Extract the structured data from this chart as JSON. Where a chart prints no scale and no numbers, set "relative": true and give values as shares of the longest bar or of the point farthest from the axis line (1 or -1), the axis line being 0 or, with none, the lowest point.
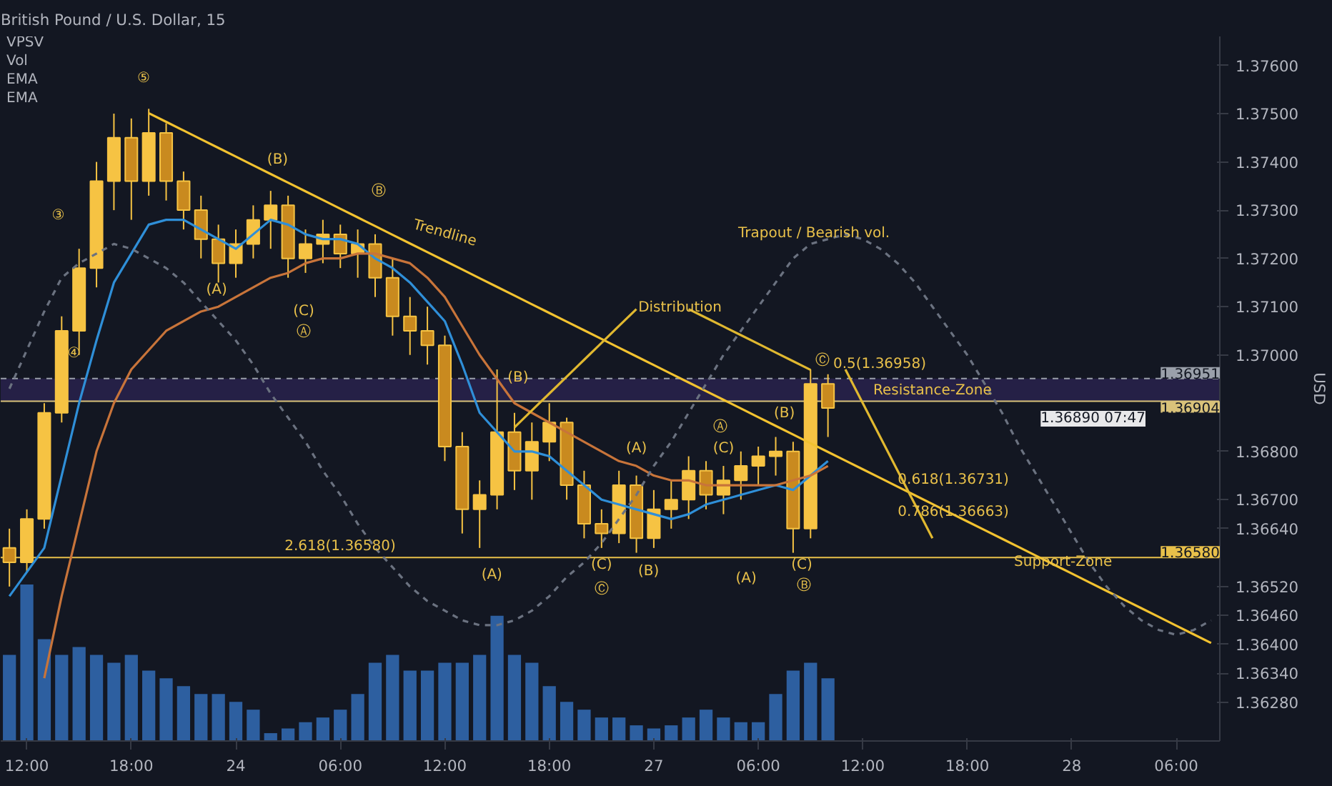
{
  "chart_data": [
    {
      "type": "candlestick",
      "title": "British Pound / U.S. Dollar, 15",
      "ylabel": "USD",
      "categories": [
        null,
        "12:00",
        null,
        null,
        null,
        null,
        null,
        "18:00",
        null,
        null,
        null,
        null,
        null,
        "24",
        null,
        null,
        null,
        null,
        null,
        "06:00",
        null,
        null,
        null,
        null,
        null,
        "12:00",
        null,
        null,
        null,
        null,
        null,
        "18:00",
        null,
        null,
        null,
        null,
        null,
        "27",
        null,
        null,
        null,
        null,
        null,
        "06:00",
        null,
        null,
        null,
        null,
        null,
        "12:00",
        null,
        null,
        null,
        null,
        null,
        "18:00",
        null,
        null,
        null,
        null,
        null,
        "28",
        null,
        null,
        null,
        null,
        null,
        "06:00",
        null,
        null
      ],
      "ylim": [
        1.362,
        1.3766
      ],
      "yticks": [
        {
          "value": 1.376,
          "label": "1.37600"
        },
        {
          "value": 1.375,
          "label": "1.37500"
        },
        {
          "value": 1.374,
          "label": "1.37400"
        },
        {
          "value": 1.373,
          "label": "1.37300"
        },
        {
          "value": 1.372,
          "label": "1.37200"
        },
        {
          "value": 1.371,
          "label": "1.37100"
        },
        {
          "value": 1.37,
          "label": "1.37000"
        },
        {
          "value": 1.368,
          "label": "1.36800"
        },
        {
          "value": 1.367,
          "label": "1.36700"
        },
        {
          "value": 1.3664,
          "label": "1.36640"
        },
        {
          "value": 1.3652,
          "label": "1.36520"
        },
        {
          "value": 1.3646,
          "label": "1.36460"
        },
        {
          "value": 1.364,
          "label": "1.36400"
        },
        {
          "value": 1.3634,
          "label": "1.36340"
        },
        {
          "value": 1.3628,
          "label": "1.36280"
        }
      ],
      "series": [
        {
          "type": "candlestick",
          "color": "#f6c343",
          "ohlc": [
            [
              1.366,
              1.3664,
              1.3652,
              1.3657
            ],
            [
              1.3657,
              1.3668,
              1.3655,
              1.3666
            ],
            [
              1.3666,
              1.369,
              1.3664,
              1.3688
            ],
            [
              1.3688,
              1.3708,
              1.3686,
              1.3705
            ],
            [
              1.3705,
              1.3722,
              1.37,
              1.3718
            ],
            [
              1.3718,
              1.374,
              1.3714,
              1.3736
            ],
            [
              1.3736,
              1.375,
              1.373,
              1.3745
            ],
            [
              1.3745,
              1.3749,
              1.3728,
              1.3736
            ],
            [
              1.3736,
              1.3751,
              1.3733,
              1.3746
            ],
            [
              1.3746,
              1.3748,
              1.3732,
              1.3736
            ],
            [
              1.3736,
              1.3738,
              1.3726,
              1.373
            ],
            [
              1.373,
              1.3733,
              1.372,
              1.3724
            ],
            [
              1.3724,
              1.3727,
              1.3715,
              1.3719
            ],
            [
              1.3719,
              1.3726,
              1.3716,
              1.3723
            ],
            [
              1.3723,
              1.3731,
              1.372,
              1.3728
            ],
            [
              1.3728,
              1.3734,
              1.3722,
              1.3731
            ],
            [
              1.3731,
              1.3733,
              1.3716,
              1.372
            ],
            [
              1.372,
              1.3726,
              1.3717,
              1.3723
            ],
            [
              1.3723,
              1.3728,
              1.3719,
              1.3725
            ],
            [
              1.3725,
              1.3727,
              1.3718,
              1.3721
            ],
            [
              1.3721,
              1.3726,
              1.3716,
              1.3723
            ],
            [
              1.3723,
              1.3725,
              1.3712,
              1.3716
            ],
            [
              1.3716,
              1.372,
              1.3704,
              1.3708
            ],
            [
              1.3708,
              1.3712,
              1.37,
              1.3705
            ],
            [
              1.3705,
              1.371,
              1.3698,
              1.3702
            ],
            [
              1.3702,
              1.3704,
              1.3678,
              1.3681
            ],
            [
              1.3681,
              1.3684,
              1.3663,
              1.3668
            ],
            [
              1.3668,
              1.3674,
              1.366,
              1.3671
            ],
            [
              1.3671,
              1.3697,
              1.3668,
              1.3684
            ],
            [
              1.3684,
              1.3688,
              1.3672,
              1.3676
            ],
            [
              1.3676,
              1.3686,
              1.367,
              1.3682
            ],
            [
              1.3682,
              1.369,
              1.3678,
              1.3686
            ],
            [
              1.3686,
              1.3687,
              1.367,
              1.3673
            ],
            [
              1.3673,
              1.3676,
              1.3662,
              1.3665
            ],
            [
              1.3665,
              1.3668,
              1.366,
              1.3663
            ],
            [
              1.3663,
              1.3676,
              1.3661,
              1.3673
            ],
            [
              1.3673,
              1.3675,
              1.3659,
              1.3662
            ],
            [
              1.3662,
              1.3672,
              1.366,
              1.3668
            ],
            [
              1.3668,
              1.3674,
              1.3664,
              1.367
            ],
            [
              1.367,
              1.3679,
              1.3666,
              1.3676
            ],
            [
              1.3676,
              1.3678,
              1.3668,
              1.3671
            ],
            [
              1.3671,
              1.3677,
              1.3667,
              1.3674
            ],
            [
              1.3674,
              1.368,
              1.367,
              1.3677
            ],
            [
              1.3677,
              1.3681,
              1.3673,
              1.3679
            ],
            [
              1.3679,
              1.3683,
              1.3675,
              1.368
            ],
            [
              1.368,
              1.3682,
              1.3659,
              1.3664
            ],
            [
              1.3664,
              1.3697,
              1.3662,
              1.3694
            ],
            [
              1.3694,
              1.3696,
              1.3683,
              1.3689
            ],
            null,
            null,
            null,
            null,
            null,
            null,
            null,
            null,
            null,
            null,
            null,
            null,
            null,
            null,
            null,
            null,
            null,
            null,
            null,
            null,
            null,
            null
          ]
        },
        {
          "type": "line",
          "color": "#2f8fd8",
          "values": [
            1.365,
            1.3655,
            1.366,
            1.3675,
            1.369,
            1.3703,
            1.3715,
            1.3721,
            1.3727,
            1.3728,
            1.3728,
            1.3726,
            1.3724,
            1.3722,
            1.3725,
            1.3728,
            1.3727,
            1.3725,
            1.3724,
            1.3724,
            1.3723,
            1.372,
            1.3718,
            1.3715,
            1.3711,
            1.3707,
            1.3698,
            1.3688,
            1.3684,
            1.368,
            1.368,
            1.3679,
            1.3676,
            1.3673,
            1.367,
            1.3669,
            1.3668,
            1.3667,
            1.3666,
            1.3667,
            1.3669,
            1.367,
            1.3671,
            1.3672,
            1.3673,
            1.3672,
            1.3675,
            1.3678,
            null,
            null,
            null,
            null,
            null,
            null,
            null,
            null,
            null,
            null,
            null,
            null,
            null,
            null,
            null,
            null,
            null,
            null,
            null,
            null,
            null,
            null
          ]
        },
        {
          "type": "line",
          "color": "#c8743a",
          "values": [
            null,
            null,
            1.3633,
            1.365,
            1.3665,
            1.368,
            1.369,
            1.3697,
            1.3701,
            1.3705,
            1.3707,
            1.3709,
            1.371,
            1.3712,
            1.3714,
            1.3716,
            1.3717,
            1.3719,
            1.372,
            1.372,
            1.3721,
            1.3721,
            1.372,
            1.3719,
            1.3716,
            1.3712,
            1.3706,
            1.37,
            1.3695,
            1.369,
            1.3688,
            1.3686,
            1.3684,
            1.3682,
            1.368,
            1.3678,
            1.3677,
            1.3675,
            1.3674,
            1.3674,
            1.3673,
            1.3673,
            1.3673,
            1.3673,
            1.3673,
            1.3674,
            1.3675,
            1.3677,
            null,
            null,
            null,
            null,
            null,
            null,
            null,
            null,
            null,
            null,
            null,
            null,
            null,
            null,
            null,
            null,
            null,
            null,
            null,
            null,
            null,
            null
          ]
        },
        {
          "type": "line",
          "color": "#f2c230",
          "values": [
            null,
            null,
            null,
            null,
            null,
            null,
            null,
            null,
            1.37501,
            1.37483,
            1.37465,
            1.37447,
            1.37429,
            1.37411,
            1.37393,
            1.37375,
            1.37357,
            1.37339,
            1.37321,
            1.37303,
            1.37285,
            1.37267,
            1.37249,
            1.37231,
            1.37213,
            1.37195,
            1.37177,
            1.37159,
            1.37141,
            1.37123,
            1.37105,
            1.37087,
            1.37069,
            1.37051,
            1.37033,
            1.37015,
            1.36997,
            1.36979,
            1.36961,
            1.36943,
            1.36925,
            1.36907,
            1.36889,
            1.36871,
            1.36853,
            1.36835,
            1.36817,
            1.36799,
            1.36781,
            1.36763,
            1.36745,
            1.36727,
            1.36709,
            1.36691,
            1.36673,
            1.36655,
            1.36637,
            1.36619,
            1.36601,
            1.36583,
            1.36565,
            1.36547,
            1.36529,
            1.36511,
            1.36493,
            1.36475,
            1.36457,
            1.36439,
            1.36421,
            1.36403
          ]
        },
        {
          "type": "line",
          "color": "#e0b830",
          "values": [
            null,
            null,
            null,
            null,
            null,
            null,
            null,
            null,
            null,
            null,
            null,
            null,
            null,
            null,
            null,
            null,
            null,
            null,
            null,
            null,
            null,
            null,
            null,
            null,
            null,
            null,
            null,
            null,
            null,
            null,
            null,
            null,
            null,
            null,
            null,
            null,
            null,
            null,
            null,
            null,
            null,
            null,
            null,
            null,
            null,
            null,
            null,
            null,
            1.3697,
            1.369,
            1.3683,
            1.3676,
            1.3669,
            1.3662,
            null,
            null,
            null,
            null,
            null,
            null,
            null,
            null,
            null,
            null,
            null,
            null,
            null,
            null,
            null,
            null
          ]
        },
        {
          "type": "line",
          "color": "#e0b830",
          "values": [
            null,
            null,
            null,
            null,
            null,
            null,
            null,
            null,
            null,
            null,
            null,
            null,
            null,
            null,
            null,
            null,
            null,
            null,
            null,
            null,
            null,
            null,
            null,
            null,
            null,
            null,
            null,
            null,
            null,
            1.3685,
            1.36885,
            1.3692,
            1.36955,
            1.3699,
            1.37025,
            1.3706,
            1.37095,
            null,
            null,
            null,
            null,
            null,
            null,
            null,
            null,
            null,
            null,
            null,
            null,
            null,
            null,
            null,
            null,
            null,
            null,
            null,
            null,
            null,
            null,
            null,
            null,
            null,
            null,
            null,
            null,
            null,
            null,
            null,
            null,
            null
          ]
        },
        {
          "type": "line",
          "color": "#e0b830",
          "values": [
            null,
            null,
            null,
            null,
            null,
            null,
            null,
            null,
            null,
            null,
            null,
            null,
            null,
            null,
            null,
            null,
            null,
            null,
            null,
            null,
            null,
            null,
            null,
            null,
            null,
            null,
            null,
            null,
            null,
            null,
            null,
            null,
            null,
            null,
            null,
            null,
            null,
            null,
            null,
            1.37095,
            1.37077,
            1.37059,
            1.37041,
            1.37023,
            1.37005,
            1.36987,
            1.36969,
            null,
            null,
            null,
            null,
            null,
            null,
            null,
            null,
            null,
            null,
            null,
            null,
            null,
            null,
            null,
            null,
            null,
            null,
            null,
            null,
            null,
            null,
            null
          ]
        },
        {
          "type": "line",
          "color": "#6b7280",
          "line_style": "dashed",
          "values": [
            1.3693,
            1.3701,
            1.3709,
            1.3716,
            1.3719,
            1.3721,
            1.3723,
            1.3722,
            1.372,
            1.3718,
            1.3715,
            1.3711,
            1.3707,
            1.3703,
            1.3698,
            1.3692,
            1.3687,
            1.3682,
            1.3676,
            1.3671,
            1.3665,
            1.366,
            1.3656,
            1.3652,
            1.3649,
            1.3647,
            1.3645,
            1.3644,
            1.3644,
            1.3645,
            1.3647,
            1.365,
            1.3654,
            1.3657,
            1.3661,
            1.3666,
            1.3671,
            1.3677,
            1.3682,
            1.3688,
            1.3694,
            1.37,
            1.3705,
            1.371,
            1.3715,
            1.372,
            1.3723,
            1.3724,
            1.3725,
            1.3724,
            1.3722,
            1.3719,
            1.3715,
            1.371,
            1.3705,
            1.37,
            1.3694,
            1.3688,
            1.3681,
            1.3675,
            1.3669,
            1.3663,
            1.3657,
            1.3652,
            1.3648,
            1.3645,
            1.3643,
            1.3642,
            1.3643,
            1.3645
          ]
        }
      ],
      "bands": [
        {
          "axis": "y",
          "from": 1.36904,
          "to": 1.36951,
          "color": "#2a2350"
        }
      ],
      "ref_lines": [
        {
          "axis": "y",
          "value": 1.36951,
          "label": "1.36951",
          "color": "#9aa0aa",
          "line_style": "dashed"
        },
        {
          "axis": "y",
          "value": 1.36904,
          "label": "1.36904",
          "color": "#d9c27a"
        },
        {
          "axis": "y",
          "value": 1.3658,
          "label": "1.36580",
          "color": "#e8c04a"
        }
      ],
      "annotations": [
        "⑤",
        "③",
        "④",
        "(B)",
        "Ⓑ",
        "Trendline",
        "(A)",
        "(C)",
        "Ⓐ",
        "(B)",
        "(A)",
        "(C)",
        "Ⓒ",
        "(A)",
        "(B)",
        "Ⓐ",
        "(C)",
        "(A)",
        "(B)",
        "(C)",
        "Ⓑ",
        "Ⓒ",
        "Distribution",
        "Trapout / Bearish vol.",
        "0.618(1.36731)",
        "0.786(1.36663)",
        {
          "text": "0.5(1.36958)",
          "y": 1.36958
        },
        {
          "text": "2.618(1.36580)",
          "y": 1.3658
        },
        {
          "text": "Resistance-Zone",
          "y": 1.36904
        },
        {
          "text": "Support-Zone",
          "y": 1.3658
        },
        {
          "text": "1.36890 07:47",
          "y": 1.3689
        },
        "VPSV",
        "Vol",
        "EMA",
        "EMA"
      ]
    },
    {
      "type": "bar",
      "relative": true,
      "tick_labels": false,
      "categories": [
        null,
        null,
        null,
        null,
        null,
        null,
        null,
        null,
        null,
        null,
        null,
        null,
        null,
        null,
        null,
        null,
        null,
        null,
        null,
        null,
        null,
        null,
        null,
        null,
        null,
        null,
        null,
        null,
        null,
        null,
        null,
        null,
        null,
        null,
        null,
        null,
        null,
        null,
        null,
        null,
        null,
        null,
        null,
        null,
        null,
        null,
        null,
        null,
        null,
        null,
        null,
        null,
        null,
        null,
        null,
        null,
        null,
        null,
        null,
        null,
        null,
        null,
        null,
        null,
        null,
        null,
        null,
        null,
        null,
        null
      ],
      "series": [
        {
          "color": "#2d5fa0",
          "values": [
            0.55,
            1,
            0.65,
            0.55,
            0.6,
            0.55,
            0.5,
            0.55,
            0.45,
            0.4,
            0.35,
            0.3,
            0.3,
            0.25,
            0.2,
            0.05,
            0.08,
            0.12,
            0.15,
            0.2,
            0.3,
            0.5,
            0.55,
            0.45,
            0.45,
            0.5,
            0.5,
            0.55,
            0.8,
            0.55,
            0.5,
            0.35,
            0.25,
            0.2,
            0.15,
            0.15,
            0.1,
            0.08,
            0.1,
            0.15,
            0.2,
            0.15,
            0.12,
            0.12,
            0.3,
            0.45,
            0.5,
            0.4,
            null,
            null,
            null,
            null,
            null,
            null,
            null,
            null,
            null,
            null,
            null,
            null,
            null,
            null,
            null,
            null,
            null,
            null,
            null,
            null,
            null,
            null
          ]
        }
      ]
    }
  ]
}
